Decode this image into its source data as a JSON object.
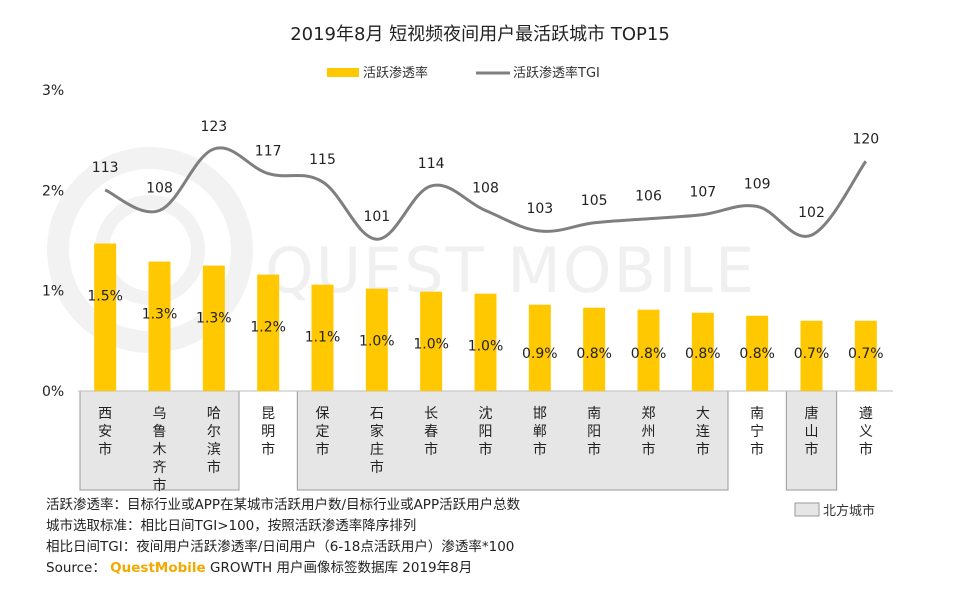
{
  "chart_data": {
    "type": "bar",
    "title": "2019年8月 短视频夜间用户最活跃城市 TOP15",
    "categories": [
      "西安市",
      "乌鲁木齐市",
      "哈尔滨市",
      "昆明市",
      "保定市",
      "石家庄市",
      "长春市",
      "沈阳市",
      "邯郸市",
      "南阳市",
      "郑州市",
      "大连市",
      "南宁市",
      "唐山市",
      "遵义市"
    ],
    "series": [
      {
        "name": "活跃渗透率",
        "type": "bar",
        "color": "#ffc800",
        "values": [
          1.5,
          1.3,
          1.3,
          1.2,
          1.1,
          1.0,
          1.0,
          1.0,
          0.9,
          0.8,
          0.8,
          0.8,
          0.8,
          0.7,
          0.7
        ],
        "bar_heights": [
          1.47,
          1.29,
          1.25,
          1.16,
          1.06,
          1.02,
          0.99,
          0.97,
          0.86,
          0.83,
          0.81,
          0.78,
          0.75,
          0.7,
          0.7
        ],
        "labels": [
          "1.5%",
          "1.3%",
          "1.3%",
          "1.2%",
          "1.1%",
          "1.0%",
          "1.0%",
          "1.0%",
          "0.9%",
          "0.8%",
          "0.8%",
          "0.8%",
          "0.8%",
          "0.7%",
          "0.7%"
        ]
      },
      {
        "name": "活跃渗透率TGI",
        "type": "line",
        "color": "#7f7f7f",
        "values": [
          113,
          108,
          123,
          117,
          115,
          101,
          114,
          108,
          103,
          105,
          106,
          107,
          109,
          102,
          120
        ]
      }
    ],
    "ylim": [
      0,
      3
    ],
    "yticks": [
      "0%",
      "1%",
      "2%",
      "3%"
    ],
    "northern_groups": [
      [
        0,
        2
      ],
      [
        4,
        11
      ],
      [
        13,
        13
      ]
    ],
    "northern_legend": "北方城市",
    "watermark": "QUEST MOBILE"
  },
  "notes": {
    "line1": "活跃渗透率：目标行业或APP在某城市活跃用户数/目标行业或APP活跃用户总数",
    "line2": "城市选取标准：相比日间TGI>100，按照活跃渗透率降序排列",
    "line3": "相比日间TGI：夜间用户活跃渗透率/日间用户（6-18点活跃用户）渗透率*100",
    "source_label": "Source：",
    "source_brand": "QuestMobile",
    "source_rest": "GROWTH 用户画像标签数据库 2019年8月"
  }
}
